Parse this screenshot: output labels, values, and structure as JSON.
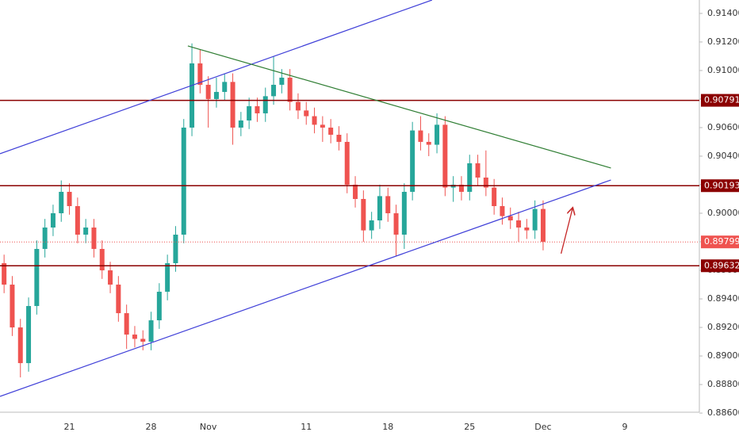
{
  "chart_data": {
    "type": "candlestick",
    "categories": [
      null,
      null,
      null,
      null,
      null,
      null,
      null,
      null,
      "21",
      null,
      null,
      null,
      null,
      null,
      null,
      null,
      null,
      null,
      "28",
      null,
      null,
      null,
      null,
      null,
      null,
      "Nov",
      null,
      null,
      null,
      null,
      null,
      null,
      null,
      null,
      null,
      null,
      null,
      "11",
      null,
      null,
      null,
      null,
      null,
      null,
      null,
      null,
      null,
      "18",
      null,
      null,
      null,
      null,
      null,
      null,
      null,
      null,
      null,
      "25",
      null,
      null,
      null,
      null,
      null,
      null,
      null,
      null,
      "Dec",
      null,
      null,
      null,
      null,
      null,
      null,
      null,
      null,
      null,
      "9",
      null,
      null,
      null,
      null,
      null,
      null,
      null,
      null,
      null
    ],
    "open": [
      0.8965,
      0.895,
      0.892,
      0.8895,
      0.8935,
      0.8975,
      0.899,
      0.9,
      0.9015,
      0.9005,
      0.8985,
      0.899,
      0.8975,
      0.896,
      0.895,
      0.893,
      0.8915,
      0.8912,
      0.891,
      0.8925,
      0.8945,
      0.8965,
      0.8985,
      0.906,
      0.9105,
      0.909,
      0.908,
      0.9085,
      0.9092,
      0.906,
      0.9065,
      0.9075,
      0.907,
      0.9082,
      0.909,
      0.9095,
      0.9078,
      0.9072,
      0.9068,
      0.9062,
      0.906,
      0.9055,
      0.905,
      0.902,
      0.901,
      0.8988,
      0.8995,
      0.9012,
      0.9,
      0.8985,
      0.9015,
      0.9058,
      0.905,
      0.9048,
      0.9062,
      0.9018,
      0.902,
      0.9015,
      0.9035,
      0.9025,
      0.9018,
      0.9005,
      0.8998,
      0.8995,
      0.899,
      0.8988,
      0.9003,
      null,
      null,
      null,
      null,
      null,
      null,
      null,
      null,
      null,
      null,
      null,
      null,
      null,
      null,
      null,
      null,
      null,
      null,
      null
    ],
    "high": [
      0.8971,
      0.8956,
      0.8926,
      0.8941,
      0.8981,
      0.8996,
      0.9006,
      0.9023,
      0.9021,
      0.9011,
      0.8996,
      0.8996,
      0.8981,
      0.8966,
      0.8956,
      0.8936,
      0.8921,
      0.8918,
      0.8931,
      0.8951,
      0.8971,
      0.8991,
      0.9066,
      0.9119,
      0.9115,
      0.9096,
      0.9095,
      0.9098,
      0.9098,
      0.9071,
      0.9081,
      0.9081,
      0.9088,
      0.911,
      0.9101,
      0.9101,
      0.9084,
      0.9078,
      0.9074,
      0.9068,
      0.9066,
      0.9061,
      0.9056,
      0.9026,
      0.9016,
      0.9001,
      0.902,
      0.9018,
      0.9006,
      0.9021,
      0.9064,
      0.9068,
      0.9056,
      0.907,
      0.9068,
      0.9026,
      0.9026,
      0.9041,
      0.9041,
      0.9044,
      0.9024,
      0.9011,
      0.9004,
      0.9001,
      0.8996,
      0.9009,
      0.9009,
      null,
      null,
      null,
      null,
      null,
      null,
      null,
      null,
      null,
      null,
      null,
      null,
      null,
      null,
      null,
      null,
      null,
      null,
      null
    ],
    "low": [
      0.8944,
      0.8914,
      0.8885,
      0.8889,
      0.8929,
      0.8969,
      0.8984,
      0.8994,
      0.8999,
      0.8979,
      0.8979,
      0.8969,
      0.8954,
      0.8944,
      0.8924,
      0.8905,
      0.8906,
      0.8904,
      0.8904,
      0.8919,
      0.8939,
      0.8959,
      0.8979,
      0.9054,
      0.9084,
      0.906,
      0.9074,
      0.9079,
      0.9048,
      0.9054,
      0.9059,
      0.9064,
      0.9064,
      0.9076,
      0.9084,
      0.9072,
      0.9066,
      0.9062,
      0.9056,
      0.905,
      0.9049,
      0.9044,
      0.9014,
      0.9004,
      0.898,
      0.8982,
      0.8989,
      0.8994,
      0.897,
      0.8975,
      0.9009,
      0.9044,
      0.904,
      0.9042,
      0.9012,
      0.9008,
      0.9009,
      0.9009,
      0.9019,
      0.9012,
      0.8999,
      0.8992,
      0.8989,
      0.898,
      0.8982,
      0.8982,
      0.8974,
      null,
      null,
      null,
      null,
      null,
      null,
      null,
      null,
      null,
      null,
      null,
      null,
      null,
      null,
      null,
      null,
      null,
      null,
      null
    ],
    "close": [
      0.895,
      0.892,
      0.8895,
      0.8935,
      0.8975,
      0.899,
      0.9,
      0.9015,
      0.9005,
      0.8985,
      0.899,
      0.8975,
      0.896,
      0.895,
      0.893,
      0.8915,
      0.8912,
      0.891,
      0.8925,
      0.8945,
      0.8965,
      0.8985,
      0.906,
      0.9105,
      0.909,
      0.908,
      0.9085,
      0.9092,
      0.906,
      0.9065,
      0.9075,
      0.907,
      0.9082,
      0.909,
      0.9095,
      0.9078,
      0.9072,
      0.9068,
      0.9062,
      0.906,
      0.9055,
      0.905,
      0.902,
      0.901,
      0.8988,
      0.8995,
      0.9012,
      0.9,
      0.8985,
      0.9015,
      0.9058,
      0.905,
      0.9048,
      0.9062,
      0.9018,
      0.902,
      0.9015,
      0.9035,
      0.9025,
      0.9018,
      0.9005,
      0.8998,
      0.8995,
      0.899,
      0.8988,
      0.9003,
      0.898,
      null,
      null,
      null,
      null,
      null,
      null,
      null,
      null,
      null,
      null,
      null,
      null,
      null,
      null,
      null,
      null,
      null,
      null,
      null
    ],
    "up_color": "#26a69a",
    "down_color": "#ef5350",
    "ylim": [
      0.88606,
      0.91494
    ],
    "yticks": [
      {
        "value": 0.886,
        "label": "0.88600"
      },
      {
        "value": 0.888,
        "label": "0.88800"
      },
      {
        "value": 0.89,
        "label": "0.89000"
      },
      {
        "value": 0.892,
        "label": "0.89200"
      },
      {
        "value": 0.894,
        "label": "0.89400"
      },
      {
        "value": 0.896,
        "label": "0.89600"
      },
      {
        "value": 0.898,
        "label": "0.89800"
      },
      {
        "value": 0.9,
        "label": "0.90000"
      },
      {
        "value": 0.902,
        "label": "0.90200"
      },
      {
        "value": 0.904,
        "label": "0.90400"
      },
      {
        "value": 0.906,
        "label": "0.90600"
      },
      {
        "value": 0.908,
        "label": "0.90800"
      },
      {
        "value": 0.91,
        "label": "0.91000"
      },
      {
        "value": 0.912,
        "label": "0.91200"
      },
      {
        "value": 0.914,
        "label": "0.91400"
      }
    ],
    "levels": [
      {
        "value": 0.90791,
        "color": "#8b0000"
      },
      {
        "value": 0.90193,
        "color": "#8b0000"
      },
      {
        "value": 0.89632,
        "color": "#8b0000"
      }
    ],
    "last_price": {
      "value": 0.89799,
      "color": "#ef5350"
    },
    "trendlines": [
      {
        "color": "#3f3fd8",
        "points": [
          [
            -0.5,
            0.90417
          ],
          [
            52.4,
            0.91494
          ]
        ]
      },
      {
        "color": "#3f3fd8",
        "points": [
          [
            -0.5,
            0.88717
          ],
          [
            74.3,
            0.90233
          ]
        ]
      },
      {
        "color": "#2e7d32",
        "points": [
          [
            22.5,
            0.91172
          ],
          [
            74.3,
            0.90317
          ]
        ]
      }
    ],
    "arrow": {
      "color": "#c62828",
      "points": [
        [
          68.2,
          0.89717
        ],
        [
          69.6,
          0.90033
        ]
      ]
    }
  }
}
